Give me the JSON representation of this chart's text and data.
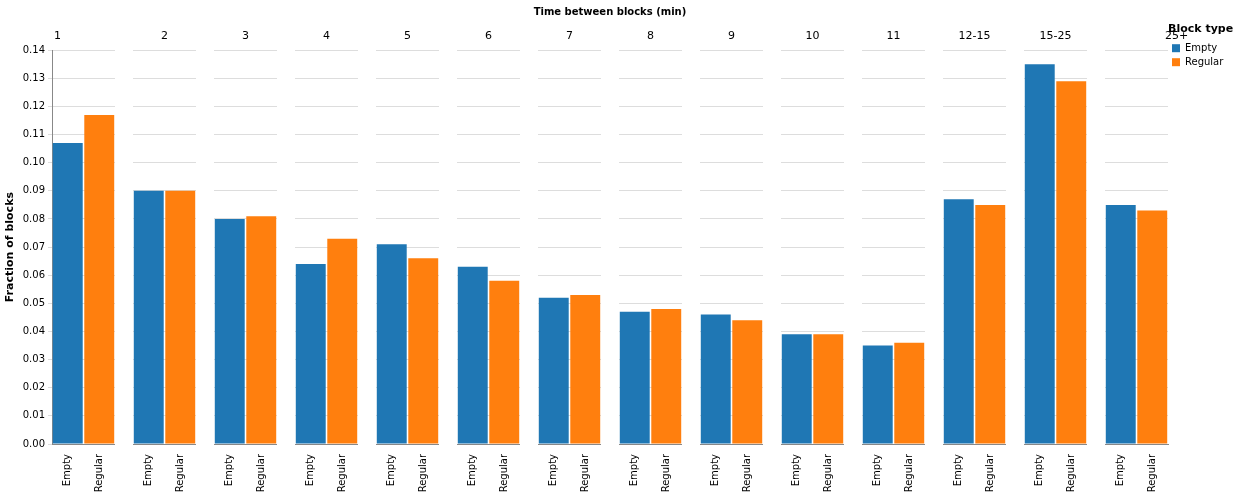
{
  "chart_data": [
    {
      "type": "bar",
      "title": "1",
      "annotations": [
        "Time between blocks (min)"
      ],
      "ylabel": "Fraction of blocks",
      "categories": [
        "Empty",
        "Regular"
      ],
      "series": [
        {
          "color": "#1f77b4",
          "values": [
            0.107,
            null
          ]
        },
        {
          "color": "#ff7f0e",
          "values": [
            null,
            0.117
          ]
        }
      ],
      "ylim": [
        0,
        0.14
      ],
      "yticks": [
        {
          "value": 0,
          "label": "0.00"
        },
        0.01,
        0.02,
        0.03,
        0.04,
        0.05,
        0.06,
        0.07,
        0.08,
        0.09,
        {
          "value": 0.1,
          "label": "0.10"
        },
        0.11,
        0.12,
        0.13,
        0.14
      ],
      "grid": "y"
    },
    {
      "type": "bar",
      "title": "2",
      "categories": [
        "Empty",
        "Regular"
      ],
      "series": [
        {
          "color": "#1f77b4",
          "values": [
            0.09,
            null
          ]
        },
        {
          "color": "#ff7f0e",
          "values": [
            null,
            0.09
          ]
        }
      ],
      "ylim": [
        0,
        0.14
      ],
      "yticks": [
        0,
        0.01,
        0.02,
        0.03,
        0.04,
        0.05,
        0.06,
        0.07,
        0.08,
        0.09,
        0.1,
        0.11,
        0.12,
        0.13,
        0.14
      ],
      "grid": "y",
      "tick_labels": "x"
    },
    {
      "type": "bar",
      "title": "3",
      "categories": [
        "Empty",
        "Regular"
      ],
      "series": [
        {
          "color": "#1f77b4",
          "values": [
            0.08,
            null
          ]
        },
        {
          "color": "#ff7f0e",
          "values": [
            null,
            0.081
          ]
        }
      ],
      "ylim": [
        0,
        0.14
      ],
      "yticks": [
        0,
        0.01,
        0.02,
        0.03,
        0.04,
        0.05,
        0.06,
        0.07,
        0.08,
        0.09,
        0.1,
        0.11,
        0.12,
        0.13,
        0.14
      ],
      "grid": "y",
      "tick_labels": "x"
    },
    {
      "type": "bar",
      "title": "4",
      "categories": [
        "Empty",
        "Regular"
      ],
      "series": [
        {
          "color": "#1f77b4",
          "values": [
            0.064,
            null
          ]
        },
        {
          "color": "#ff7f0e",
          "values": [
            null,
            0.073
          ]
        }
      ],
      "ylim": [
        0,
        0.14
      ],
      "yticks": [
        0,
        0.01,
        0.02,
        0.03,
        0.04,
        0.05,
        0.06,
        0.07,
        0.08,
        0.09,
        0.1,
        0.11,
        0.12,
        0.13,
        0.14
      ],
      "grid": "y",
      "tick_labels": "x"
    },
    {
      "type": "bar",
      "title": "5",
      "categories": [
        "Empty",
        "Regular"
      ],
      "series": [
        {
          "color": "#1f77b4",
          "values": [
            0.071,
            null
          ]
        },
        {
          "color": "#ff7f0e",
          "values": [
            null,
            0.066
          ]
        }
      ],
      "ylim": [
        0,
        0.14
      ],
      "yticks": [
        0,
        0.01,
        0.02,
        0.03,
        0.04,
        0.05,
        0.06,
        0.07,
        0.08,
        0.09,
        0.1,
        0.11,
        0.12,
        0.13,
        0.14
      ],
      "grid": "y",
      "tick_labels": "x"
    },
    {
      "type": "bar",
      "title": "6",
      "categories": [
        "Empty",
        "Regular"
      ],
      "series": [
        {
          "color": "#1f77b4",
          "values": [
            0.063,
            null
          ]
        },
        {
          "color": "#ff7f0e",
          "values": [
            null,
            0.058
          ]
        }
      ],
      "ylim": [
        0,
        0.14
      ],
      "yticks": [
        0,
        0.01,
        0.02,
        0.03,
        0.04,
        0.05,
        0.06,
        0.07,
        0.08,
        0.09,
        0.1,
        0.11,
        0.12,
        0.13,
        0.14
      ],
      "grid": "y",
      "tick_labels": "x"
    },
    {
      "type": "bar",
      "title": "7",
      "categories": [
        "Empty",
        "Regular"
      ],
      "series": [
        {
          "color": "#1f77b4",
          "values": [
            0.052,
            null
          ]
        },
        {
          "color": "#ff7f0e",
          "values": [
            null,
            0.053
          ]
        }
      ],
      "ylim": [
        0,
        0.14
      ],
      "yticks": [
        0,
        0.01,
        0.02,
        0.03,
        0.04,
        0.05,
        0.06,
        0.07,
        0.08,
        0.09,
        0.1,
        0.11,
        0.12,
        0.13,
        0.14
      ],
      "grid": "y",
      "tick_labels": "x"
    },
    {
      "type": "bar",
      "title": "8",
      "categories": [
        "Empty",
        "Regular"
      ],
      "series": [
        {
          "color": "#1f77b4",
          "values": [
            0.047,
            null
          ]
        },
        {
          "color": "#ff7f0e",
          "values": [
            null,
            0.048
          ]
        }
      ],
      "ylim": [
        0,
        0.14
      ],
      "yticks": [
        0,
        0.01,
        0.02,
        0.03,
        0.04,
        0.05,
        0.06,
        0.07,
        0.08,
        0.09,
        0.1,
        0.11,
        0.12,
        0.13,
        0.14
      ],
      "grid": "y",
      "tick_labels": "x"
    },
    {
      "type": "bar",
      "title": "9",
      "categories": [
        "Empty",
        "Regular"
      ],
      "series": [
        {
          "color": "#1f77b4",
          "values": [
            0.046,
            null
          ]
        },
        {
          "color": "#ff7f0e",
          "values": [
            null,
            0.044
          ]
        }
      ],
      "ylim": [
        0,
        0.14
      ],
      "yticks": [
        0,
        0.01,
        0.02,
        0.03,
        0.04,
        0.05,
        0.06,
        0.07,
        0.08,
        0.09,
        0.1,
        0.11,
        0.12,
        0.13,
        0.14
      ],
      "grid": "y",
      "tick_labels": "x"
    },
    {
      "type": "bar",
      "title": "10",
      "categories": [
        "Empty",
        "Regular"
      ],
      "series": [
        {
          "color": "#1f77b4",
          "values": [
            0.039,
            null
          ]
        },
        {
          "color": "#ff7f0e",
          "values": [
            null,
            0.039
          ]
        }
      ],
      "ylim": [
        0,
        0.14
      ],
      "yticks": [
        0,
        0.01,
        0.02,
        0.03,
        0.04,
        0.05,
        0.06,
        0.07,
        0.08,
        0.09,
        0.1,
        0.11,
        0.12,
        0.13,
        0.14
      ],
      "grid": "y",
      "tick_labels": "x"
    },
    {
      "type": "bar",
      "title": "11",
      "categories": [
        "Empty",
        "Regular"
      ],
      "series": [
        {
          "color": "#1f77b4",
          "values": [
            0.035,
            null
          ]
        },
        {
          "color": "#ff7f0e",
          "values": [
            null,
            0.036
          ]
        }
      ],
      "ylim": [
        0,
        0.14
      ],
      "yticks": [
        0,
        0.01,
        0.02,
        0.03,
        0.04,
        0.05,
        0.06,
        0.07,
        0.08,
        0.09,
        0.1,
        0.11,
        0.12,
        0.13,
        0.14
      ],
      "grid": "y",
      "tick_labels": "x"
    },
    {
      "type": "bar",
      "title": "12-15",
      "categories": [
        "Empty",
        "Regular"
      ],
      "series": [
        {
          "color": "#1f77b4",
          "values": [
            0.087,
            null
          ]
        },
        {
          "color": "#ff7f0e",
          "values": [
            null,
            0.085
          ]
        }
      ],
      "ylim": [
        0,
        0.14
      ],
      "yticks": [
        0,
        0.01,
        0.02,
        0.03,
        0.04,
        0.05,
        0.06,
        0.07,
        0.08,
        0.09,
        0.1,
        0.11,
        0.12,
        0.13,
        0.14
      ],
      "grid": "y",
      "tick_labels": "x"
    },
    {
      "type": "bar",
      "title": "15-25",
      "categories": [
        "Empty",
        "Regular"
      ],
      "series": [
        {
          "color": "#1f77b4",
          "values": [
            0.135,
            null
          ]
        },
        {
          "color": "#ff7f0e",
          "values": [
            null,
            0.129
          ]
        }
      ],
      "ylim": [
        0,
        0.14
      ],
      "yticks": [
        0,
        0.01,
        0.02,
        0.03,
        0.04,
        0.05,
        0.06,
        0.07,
        0.08,
        0.09,
        0.1,
        0.11,
        0.12,
        0.13,
        0.14
      ],
      "grid": "y",
      "tick_labels": "x"
    },
    {
      "type": "bar",
      "title": "25+",
      "categories": [
        "Empty",
        "Regular"
      ],
      "series": [
        {
          "name": "Empty",
          "color": "#1f77b4",
          "values": [
            0.085,
            null
          ]
        },
        {
          "name": "Regular",
          "color": "#ff7f0e",
          "values": [
            null,
            0.083
          ]
        }
      ],
      "ylim": [
        0,
        0.14
      ],
      "yticks": [
        0,
        0.01,
        0.02,
        0.03,
        0.04,
        0.05,
        0.06,
        0.07,
        0.08,
        0.09,
        0.1,
        0.11,
        0.12,
        0.13,
        0.14
      ],
      "grid": "y",
      "tick_labels": "x",
      "legend": "right",
      "legend_title": "Block type"
    }
  ]
}
